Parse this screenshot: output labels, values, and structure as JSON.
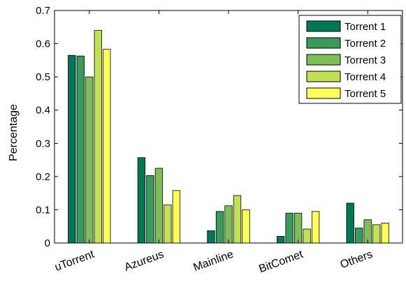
{
  "chart_data": {
    "type": "bar",
    "title": "",
    "xlabel": "",
    "ylabel": "Percentage",
    "ylim": [
      0,
      0.7
    ],
    "yticks": [
      "0",
      "0.1",
      "0.2",
      "0.3",
      "0.4",
      "0.5",
      "0.6",
      "0.7"
    ],
    "categories": [
      "uTorrent",
      "Azureus",
      "Mainline",
      "BitComet",
      "Others"
    ],
    "series": [
      {
        "name": "Torrent 1",
        "color": "#007755",
        "values": [
          0.565,
          0.257,
          0.037,
          0.02,
          0.12
        ]
      },
      {
        "name": "Torrent 2",
        "color": "#3a9a5c",
        "values": [
          0.563,
          0.203,
          0.095,
          0.09,
          0.045
        ]
      },
      {
        "name": "Torrent 3",
        "color": "#7ebe5a",
        "values": [
          0.5,
          0.225,
          0.112,
          0.09,
          0.07
        ]
      },
      {
        "name": "Torrent 4",
        "color": "#c0e055",
        "values": [
          0.64,
          0.115,
          0.143,
          0.042,
          0.055
        ]
      },
      {
        "name": "Torrent 5",
        "color": "#ffff55",
        "values": [
          0.583,
          0.158,
          0.1,
          0.095,
          0.06
        ]
      }
    ],
    "grid": false,
    "legend_position": "top-right"
  }
}
